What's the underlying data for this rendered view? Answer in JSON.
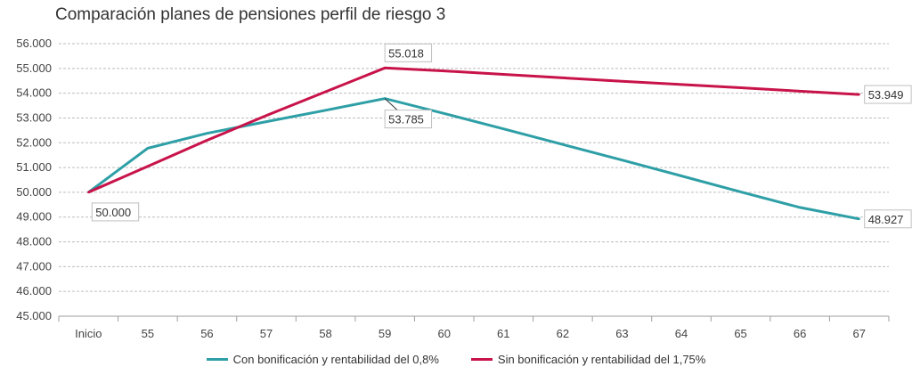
{
  "chart_data": {
    "type": "line",
    "title": "Comparación planes de pensiones perfil de riesgo 3",
    "categories": [
      "Inicio",
      "55",
      "56",
      "57",
      "58",
      "59",
      "60",
      "61",
      "62",
      "63",
      "64",
      "65",
      "66",
      "67"
    ],
    "y_tick_labels": [
      "45.000",
      "46.000",
      "47.000",
      "48.000",
      "49.000",
      "50.000",
      "51.000",
      "52.000",
      "53.000",
      "54.000",
      "55.000",
      "56.000"
    ],
    "ylim": [
      45000,
      56000
    ],
    "grid": true,
    "legend_position": "bottom",
    "series": [
      {
        "name": "Con bonificación y rentabilidad del 0,8%",
        "color": "#2e9fa6",
        "values": [
          50000,
          51780,
          52380,
          52850,
          53310,
          53785,
          53180,
          52560,
          51930,
          51300,
          50660,
          50020,
          49390,
          48927
        ]
      },
      {
        "name": "Sin bonificación y rentabilidad del 1,75%",
        "color": "#c8134a",
        "values": [
          50000,
          51050,
          52100,
          53100,
          54060,
          55018,
          54900,
          54760,
          54620,
          54480,
          54350,
          54220,
          54080,
          53949
        ]
      }
    ],
    "data_labels": [
      {
        "series": 0,
        "index": 0,
        "text": "50.000"
      },
      {
        "series": 1,
        "index": 5,
        "text": "55.018"
      },
      {
        "series": 0,
        "index": 5,
        "text": "53.785"
      },
      {
        "series": 1,
        "index": 13,
        "text": "53.949"
      },
      {
        "series": 0,
        "index": 13,
        "text": "48.927"
      }
    ]
  }
}
